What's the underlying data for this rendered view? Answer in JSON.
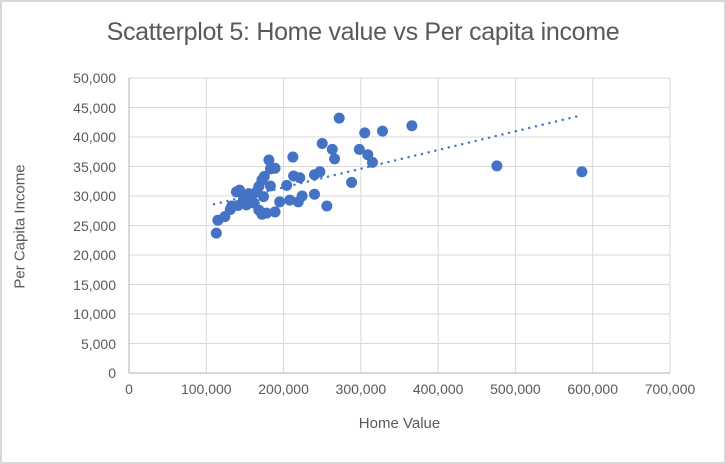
{
  "chart_data": {
    "type": "scatter",
    "title": "Scatterplot 5: Home value vs Per capita income",
    "xlabel": "Home Value",
    "ylabel": "Per Capita Income",
    "xlim": [
      0,
      700000
    ],
    "ylim": [
      0,
      50000
    ],
    "x_ticks": [
      0,
      100000,
      200000,
      300000,
      400000,
      500000,
      600000,
      700000
    ],
    "x_tick_labels": [
      "0",
      "100,000",
      "200,000",
      "300,000",
      "400,000",
      "500,000",
      "600,000",
      "700,000"
    ],
    "y_ticks": [
      0,
      5000,
      10000,
      15000,
      20000,
      25000,
      30000,
      35000,
      40000,
      45000,
      50000
    ],
    "y_tick_labels": [
      "0",
      "5,000",
      "10,000",
      "15,000",
      "20,000",
      "25,000",
      "30,000",
      "35,000",
      "40,000",
      "45,000",
      "50,000"
    ],
    "grid": true,
    "legend": false,
    "points": [
      [
        113000,
        23700
      ],
      [
        115000,
        25900
      ],
      [
        124000,
        26500
      ],
      [
        131000,
        27700
      ],
      [
        133000,
        28300
      ],
      [
        139000,
        30700
      ],
      [
        143000,
        31000
      ],
      [
        141000,
        28400
      ],
      [
        148000,
        29400
      ],
      [
        152000,
        28500
      ],
      [
        155000,
        30400
      ],
      [
        159000,
        30100
      ],
      [
        162000,
        28800
      ],
      [
        165000,
        30700
      ],
      [
        168000,
        27600
      ],
      [
        172000,
        26900
      ],
      [
        174000,
        29900
      ],
      [
        178000,
        27100
      ],
      [
        168000,
        31600
      ],
      [
        172000,
        32700
      ],
      [
        175000,
        33300
      ],
      [
        183000,
        31700
      ],
      [
        183000,
        34600
      ],
      [
        181000,
        36100
      ],
      [
        189000,
        34700
      ],
      [
        189000,
        27300
      ],
      [
        195000,
        29000
      ],
      [
        204000,
        31800
      ],
      [
        208000,
        29300
      ],
      [
        212000,
        36600
      ],
      [
        213000,
        33400
      ],
      [
        219000,
        29000
      ],
      [
        221000,
        33100
      ],
      [
        224000,
        30000
      ],
      [
        240000,
        30300
      ],
      [
        240000,
        33600
      ],
      [
        247000,
        34100
      ],
      [
        250000,
        38900
      ],
      [
        256000,
        28300
      ],
      [
        263000,
        37900
      ],
      [
        266000,
        36300
      ],
      [
        272000,
        43200
      ],
      [
        288000,
        32300
      ],
      [
        298000,
        37900
      ],
      [
        309000,
        37000
      ],
      [
        315000,
        35700
      ],
      [
        305000,
        40700
      ],
      [
        328000,
        41000
      ],
      [
        366000,
        41900
      ],
      [
        476000,
        35100
      ],
      [
        586000,
        34100
      ]
    ],
    "trendline": {
      "style": "dotted",
      "x1": 110000,
      "y1": 28600,
      "x2": 583000,
      "y2": 43600
    },
    "colors": {
      "marker": "#4472C4",
      "trendline": "#4472C4",
      "gridline": "#D9D9D9",
      "axis_line": "#BFBFBF",
      "text": "#595959",
      "border": "#D7D7D7",
      "background": "#FFFFFF"
    }
  }
}
